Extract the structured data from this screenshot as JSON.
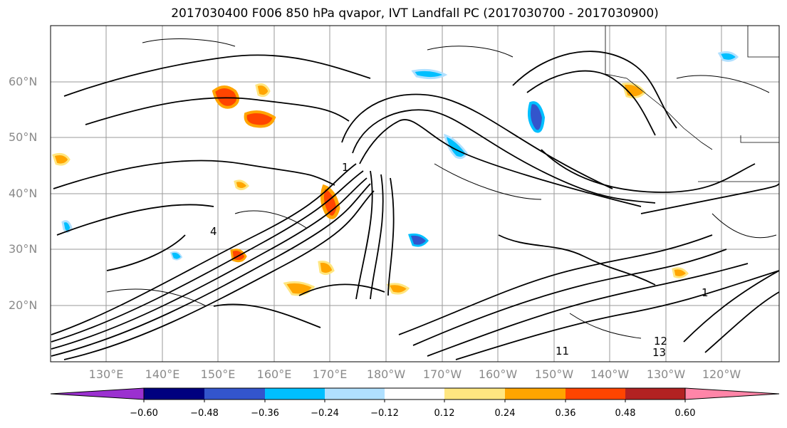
{
  "title": "2017030400 F006 850 hPa qvapor, IVT Landfall PC (2017030700 - 2017030900)",
  "map": {
    "lat_labels": [
      "60°N",
      "50°N",
      "40°N",
      "30°N",
      "20°N"
    ],
    "lon_labels": [
      "130°E",
      "140°E",
      "150°E",
      "160°E",
      "170°E",
      "180°W",
      "170°W",
      "160°W",
      "150°W",
      "140°W",
      "130°W",
      "120°W"
    ],
    "contour_labels": [
      "1",
      "4",
      "11",
      "12",
      "13",
      "1"
    ]
  },
  "colorbar": {
    "ticks": [
      "−0.60",
      "−0.48",
      "−0.36",
      "−0.24",
      "−0.12",
      "0.12",
      "0.24",
      "0.36",
      "0.48",
      "0.60"
    ],
    "colors": [
      "#9b30d0",
      "#00007f",
      "#3355cc",
      "#00bfff",
      "#b0e0ff",
      "#ffffff",
      "#ffe680",
      "#ffa500",
      "#ff4500",
      "#b22222",
      "#ff85a8"
    ]
  }
}
